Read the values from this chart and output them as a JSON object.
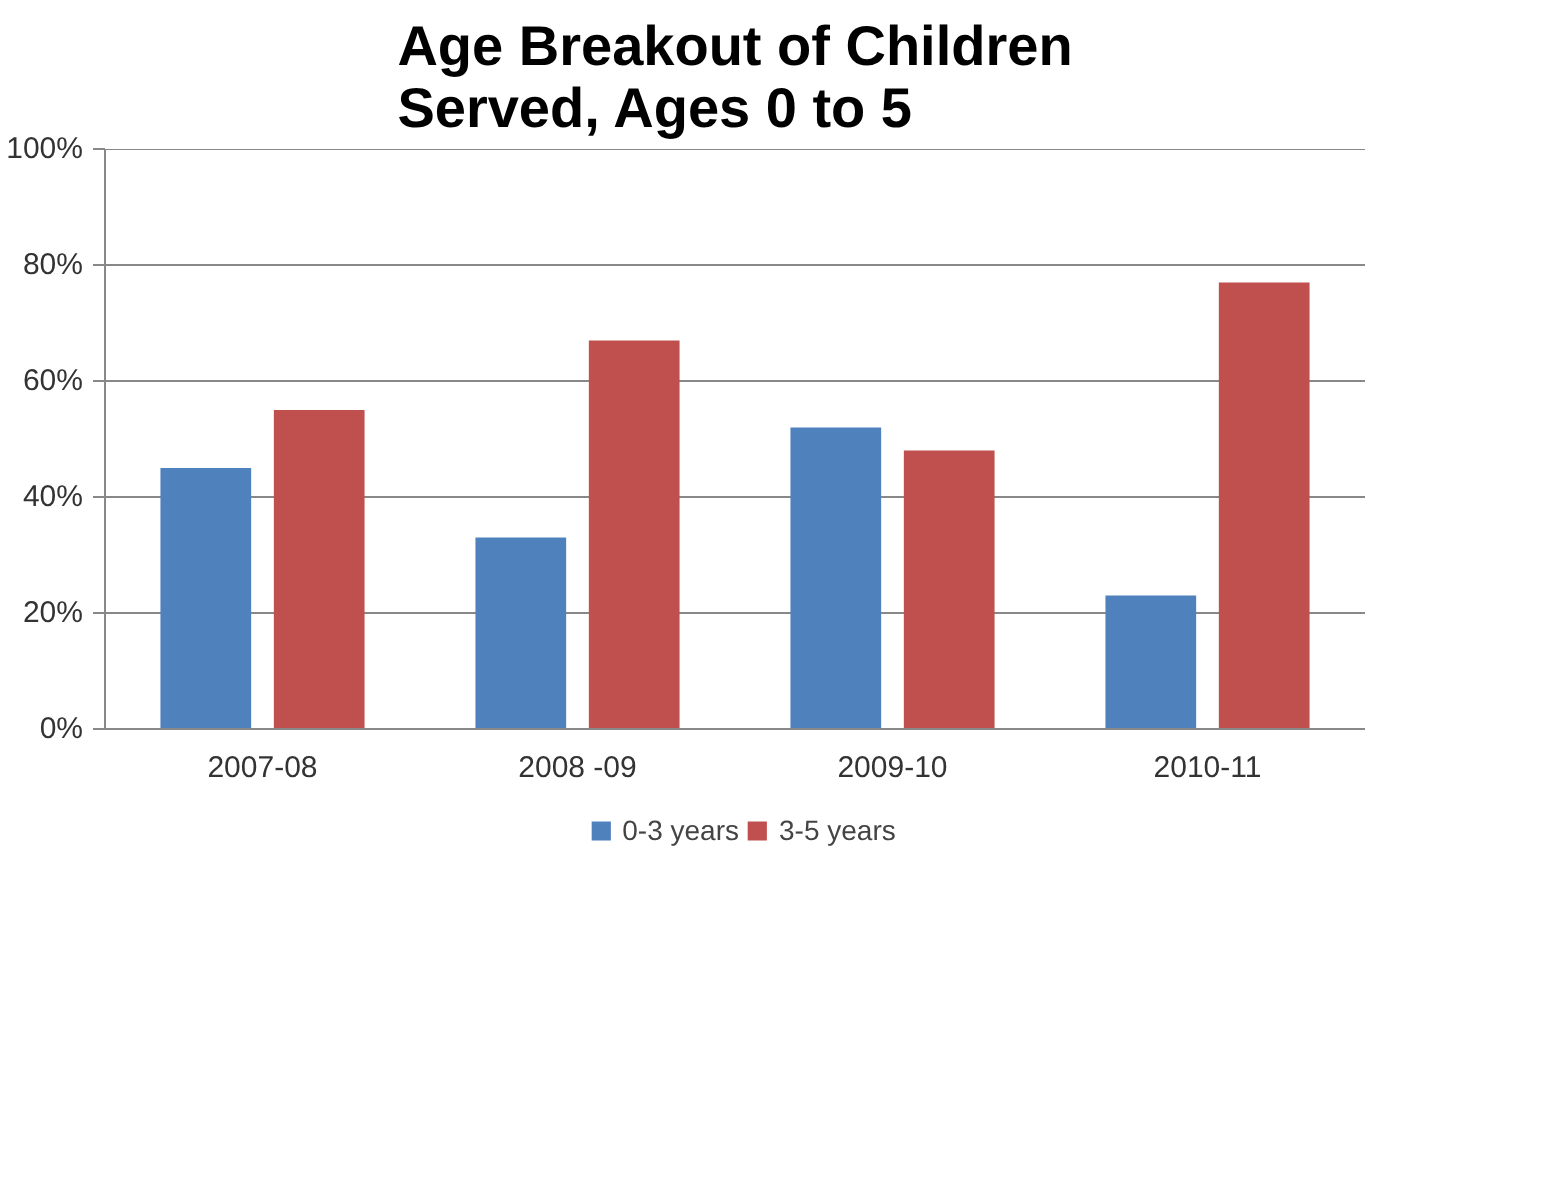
{
  "chart_data": {
    "type": "bar",
    "title": "Age Breakout of Children Served, Ages 0 to 5",
    "categories": [
      "2007-08",
      "2008 -09",
      "2009-10",
      "2010-11"
    ],
    "series": [
      {
        "name": "0-3 years",
        "color": "#4f81bd",
        "values": [
          45,
          33,
          52,
          23
        ]
      },
      {
        "name": "3-5 years",
        "color": "#c0504d",
        "values": [
          55,
          67,
          48,
          77
        ]
      }
    ],
    "ylim": [
      0,
      100
    ],
    "yticks": [
      {
        "value": 0,
        "label": "0%"
      },
      {
        "value": 20,
        "label": "20%"
      },
      {
        "value": 40,
        "label": "40%"
      },
      {
        "value": 60,
        "label": "60%"
      },
      {
        "value": 80,
        "label": "80%"
      },
      {
        "value": 100,
        "label": "100%"
      }
    ],
    "grid": "y",
    "legend": "bottom"
  }
}
